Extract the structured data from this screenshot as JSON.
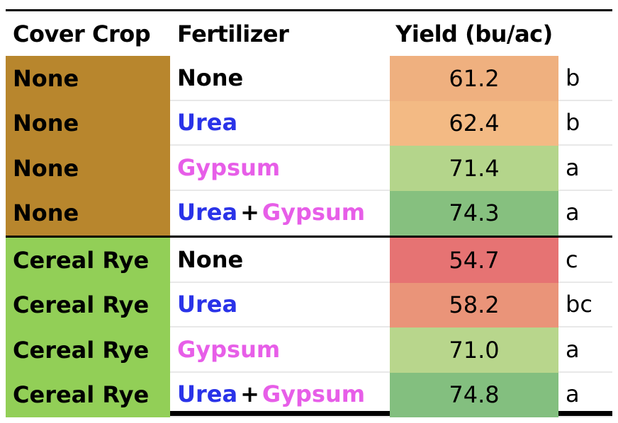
{
  "chart_data": {
    "type": "table",
    "columns": [
      "Cover Crop",
      "Fertilizer",
      "Yield (bu/ac)"
    ],
    "rows": [
      {
        "cover": "None",
        "fert_main": "None",
        "fert_main_type": "none",
        "fert_plus": "",
        "fert_second": "",
        "yield": "61.2",
        "letter": "b",
        "color": "#efb07f"
      },
      {
        "cover": "None",
        "fert_main": "Urea",
        "fert_main_type": "urea",
        "fert_plus": "",
        "fert_second": "",
        "yield": "62.4",
        "letter": "b",
        "color": "#f3ba84"
      },
      {
        "cover": "None",
        "fert_main": "Gypsum",
        "fert_main_type": "gyp",
        "fert_plus": "",
        "fert_second": "",
        "yield": "71.4",
        "letter": "a",
        "color": "#b4d58b"
      },
      {
        "cover": "None",
        "fert_main": "Urea",
        "fert_main_type": "urea",
        "fert_plus": "+",
        "fert_second": "Gypsum",
        "yield": "74.3",
        "letter": "a",
        "color": "#86c07f"
      },
      {
        "cover": "Cereal Rye",
        "fert_main": "None",
        "fert_main_type": "none",
        "fert_plus": "",
        "fert_second": "",
        "yield": "54.7",
        "letter": "c",
        "color": "#e67373"
      },
      {
        "cover": "Cereal Rye",
        "fert_main": "Urea",
        "fert_main_type": "urea",
        "fert_plus": "",
        "fert_second": "",
        "yield": "58.2",
        "letter": "bc",
        "color": "#ea9479"
      },
      {
        "cover": "Cereal Rye",
        "fert_main": "Gypsum",
        "fert_main_type": "gyp",
        "fert_plus": "",
        "fert_second": "",
        "yield": "71.0",
        "letter": "a",
        "color": "#b8d68c"
      },
      {
        "cover": "Cereal Rye",
        "fert_main": "Urea",
        "fert_main_type": "urea",
        "fert_plus": "+",
        "fert_second": "Gypsum",
        "yield": "74.8",
        "letter": "a",
        "color": "#83bf7f"
      }
    ]
  },
  "colors": {
    "none_cover": "#b8862d",
    "rye_cover": "#92cf57",
    "urea_text": "#2a33e8",
    "gypsum_text": "#e75ee8"
  }
}
